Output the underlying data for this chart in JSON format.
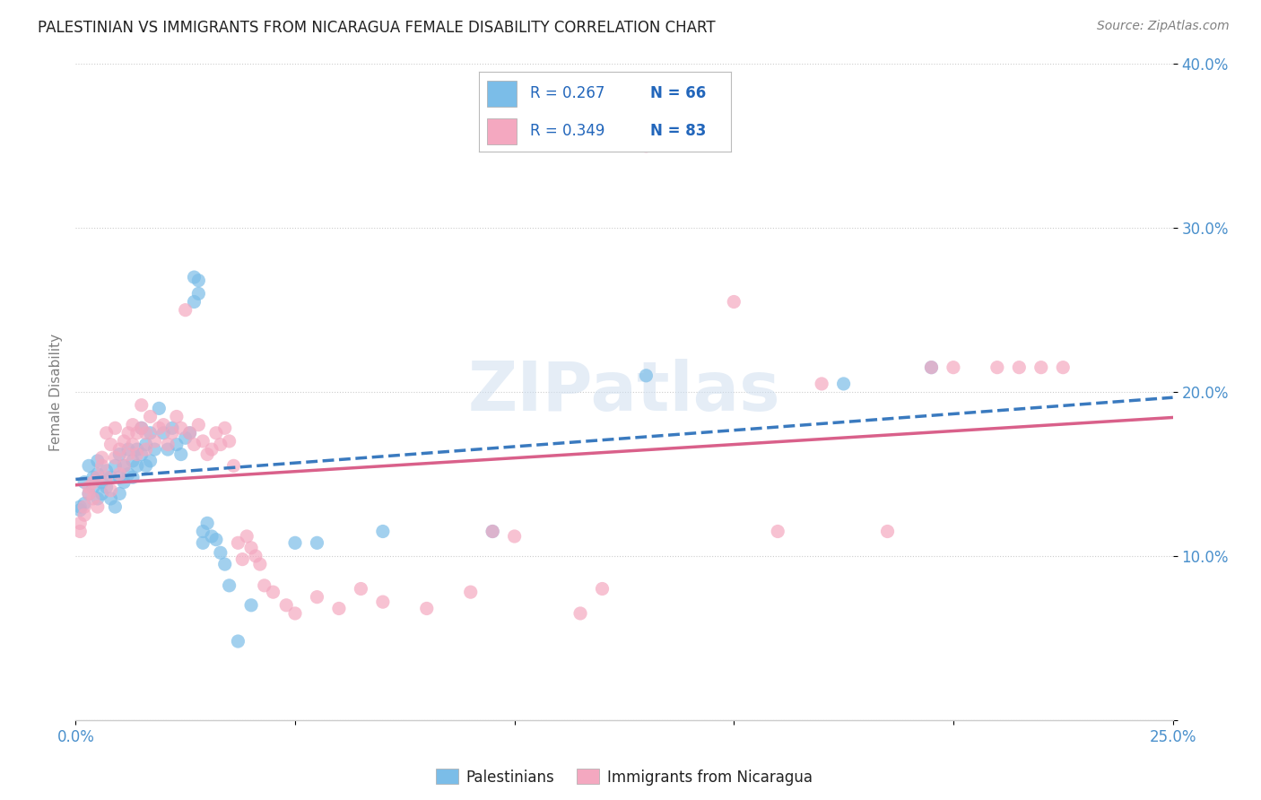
{
  "title": "PALESTINIAN VS IMMIGRANTS FROM NICARAGUA FEMALE DISABILITY CORRELATION CHART",
  "source": "Source: ZipAtlas.com",
  "ylabel": "Female Disability",
  "xlim": [
    0.0,
    0.25
  ],
  "ylim": [
    0.0,
    0.4
  ],
  "xtick_positions": [
    0.0,
    0.05,
    0.1,
    0.15,
    0.2,
    0.25
  ],
  "xtick_labels": [
    "0.0%",
    "",
    "",
    "",
    "",
    "25.0%"
  ],
  "ytick_positions": [
    0.0,
    0.1,
    0.2,
    0.3,
    0.4
  ],
  "ytick_labels": [
    "",
    "10.0%",
    "20.0%",
    "30.0%",
    "40.0%"
  ],
  "blue_R": 0.267,
  "blue_N": 66,
  "pink_R": 0.349,
  "pink_N": 83,
  "blue_color": "#7bbde8",
  "pink_color": "#f4a8c0",
  "blue_line_color": "#3a7abf",
  "pink_line_color": "#d9608a",
  "watermark": "ZIPatlas",
  "legend_label_blue": "Palestinians",
  "legend_label_pink": "Immigrants from Nicaragua",
  "blue_points": [
    [
      0.001,
      0.13
    ],
    [
      0.001,
      0.128
    ],
    [
      0.002,
      0.145
    ],
    [
      0.002,
      0.132
    ],
    [
      0.003,
      0.138
    ],
    [
      0.003,
      0.155
    ],
    [
      0.004,
      0.142
    ],
    [
      0.004,
      0.148
    ],
    [
      0.005,
      0.135
    ],
    [
      0.005,
      0.15
    ],
    [
      0.005,
      0.158
    ],
    [
      0.006,
      0.145
    ],
    [
      0.006,
      0.138
    ],
    [
      0.007,
      0.152
    ],
    [
      0.007,
      0.142
    ],
    [
      0.008,
      0.148
    ],
    [
      0.008,
      0.135
    ],
    [
      0.009,
      0.155
    ],
    [
      0.009,
      0.13
    ],
    [
      0.01,
      0.148
    ],
    [
      0.01,
      0.162
    ],
    [
      0.01,
      0.138
    ],
    [
      0.011,
      0.155
    ],
    [
      0.011,
      0.145
    ],
    [
      0.012,
      0.15
    ],
    [
      0.012,
      0.165
    ],
    [
      0.013,
      0.158
    ],
    [
      0.013,
      0.148
    ],
    [
      0.014,
      0.155
    ],
    [
      0.014,
      0.165
    ],
    [
      0.015,
      0.178
    ],
    [
      0.015,
      0.162
    ],
    [
      0.016,
      0.155
    ],
    [
      0.016,
      0.168
    ],
    [
      0.017,
      0.175
    ],
    [
      0.017,
      0.158
    ],
    [
      0.018,
      0.165
    ],
    [
      0.019,
      0.19
    ],
    [
      0.02,
      0.175
    ],
    [
      0.021,
      0.165
    ],
    [
      0.022,
      0.178
    ],
    [
      0.023,
      0.168
    ],
    [
      0.024,
      0.162
    ],
    [
      0.025,
      0.172
    ],
    [
      0.026,
      0.175
    ],
    [
      0.027,
      0.27
    ],
    [
      0.027,
      0.255
    ],
    [
      0.028,
      0.26
    ],
    [
      0.028,
      0.268
    ],
    [
      0.029,
      0.115
    ],
    [
      0.029,
      0.108
    ],
    [
      0.03,
      0.12
    ],
    [
      0.031,
      0.112
    ],
    [
      0.032,
      0.11
    ],
    [
      0.033,
      0.102
    ],
    [
      0.034,
      0.095
    ],
    [
      0.035,
      0.082
    ],
    [
      0.037,
      0.048
    ],
    [
      0.04,
      0.07
    ],
    [
      0.05,
      0.108
    ],
    [
      0.055,
      0.108
    ],
    [
      0.07,
      0.115
    ],
    [
      0.095,
      0.115
    ],
    [
      0.13,
      0.21
    ],
    [
      0.175,
      0.205
    ],
    [
      0.195,
      0.215
    ]
  ],
  "pink_points": [
    [
      0.001,
      0.12
    ],
    [
      0.001,
      0.115
    ],
    [
      0.002,
      0.13
    ],
    [
      0.002,
      0.125
    ],
    [
      0.003,
      0.138
    ],
    [
      0.003,
      0.142
    ],
    [
      0.004,
      0.135
    ],
    [
      0.004,
      0.145
    ],
    [
      0.005,
      0.13
    ],
    [
      0.005,
      0.148
    ],
    [
      0.006,
      0.155
    ],
    [
      0.006,
      0.16
    ],
    [
      0.007,
      0.148
    ],
    [
      0.007,
      0.175
    ],
    [
      0.008,
      0.14
    ],
    [
      0.008,
      0.168
    ],
    [
      0.009,
      0.16
    ],
    [
      0.009,
      0.178
    ],
    [
      0.01,
      0.15
    ],
    [
      0.01,
      0.165
    ],
    [
      0.011,
      0.155
    ],
    [
      0.011,
      0.17
    ],
    [
      0.012,
      0.162
    ],
    [
      0.012,
      0.175
    ],
    [
      0.013,
      0.168
    ],
    [
      0.013,
      0.18
    ],
    [
      0.014,
      0.175
    ],
    [
      0.014,
      0.162
    ],
    [
      0.015,
      0.178
    ],
    [
      0.015,
      0.192
    ],
    [
      0.016,
      0.165
    ],
    [
      0.016,
      0.175
    ],
    [
      0.017,
      0.185
    ],
    [
      0.018,
      0.17
    ],
    [
      0.019,
      0.178
    ],
    [
      0.02,
      0.18
    ],
    [
      0.021,
      0.168
    ],
    [
      0.022,
      0.175
    ],
    [
      0.023,
      0.185
    ],
    [
      0.024,
      0.178
    ],
    [
      0.025,
      0.25
    ],
    [
      0.026,
      0.175
    ],
    [
      0.027,
      0.168
    ],
    [
      0.028,
      0.18
    ],
    [
      0.029,
      0.17
    ],
    [
      0.03,
      0.162
    ],
    [
      0.031,
      0.165
    ],
    [
      0.032,
      0.175
    ],
    [
      0.033,
      0.168
    ],
    [
      0.034,
      0.178
    ],
    [
      0.035,
      0.17
    ],
    [
      0.036,
      0.155
    ],
    [
      0.037,
      0.108
    ],
    [
      0.038,
      0.098
    ],
    [
      0.039,
      0.112
    ],
    [
      0.04,
      0.105
    ],
    [
      0.041,
      0.1
    ],
    [
      0.042,
      0.095
    ],
    [
      0.043,
      0.082
    ],
    [
      0.045,
      0.078
    ],
    [
      0.048,
      0.07
    ],
    [
      0.05,
      0.065
    ],
    [
      0.055,
      0.075
    ],
    [
      0.06,
      0.068
    ],
    [
      0.065,
      0.08
    ],
    [
      0.07,
      0.072
    ],
    [
      0.08,
      0.068
    ],
    [
      0.09,
      0.078
    ],
    [
      0.095,
      0.115
    ],
    [
      0.1,
      0.112
    ],
    [
      0.115,
      0.065
    ],
    [
      0.12,
      0.08
    ],
    [
      0.13,
      0.35
    ],
    [
      0.15,
      0.255
    ],
    [
      0.16,
      0.115
    ],
    [
      0.17,
      0.205
    ],
    [
      0.185,
      0.115
    ],
    [
      0.195,
      0.215
    ],
    [
      0.2,
      0.215
    ],
    [
      0.21,
      0.215
    ],
    [
      0.215,
      0.215
    ],
    [
      0.22,
      0.215
    ],
    [
      0.225,
      0.215
    ]
  ]
}
